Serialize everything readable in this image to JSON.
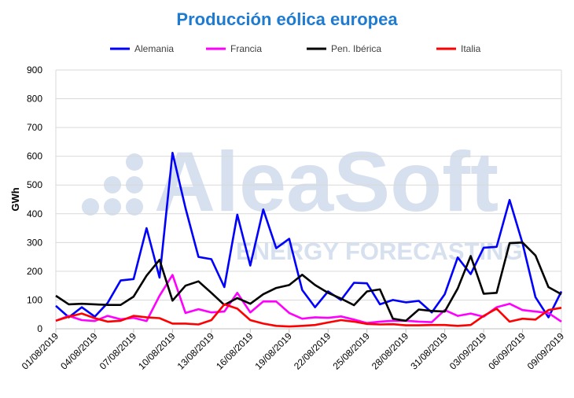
{
  "chart_data": {
    "type": "line",
    "title": "Producción eólica europea",
    "xlabel": "",
    "ylabel": "GWh",
    "ylim": [
      0,
      900
    ],
    "yticks": [
      0,
      100,
      200,
      300,
      400,
      500,
      600,
      700,
      800,
      900
    ],
    "grid": true,
    "legend": "top",
    "watermark": "AleaSoft ENERGY FORECASTING",
    "x": [
      "01/08/2019",
      "02/08/2019",
      "03/08/2019",
      "04/08/2019",
      "05/08/2019",
      "06/08/2019",
      "07/08/2019",
      "08/08/2019",
      "09/08/2019",
      "10/08/2019",
      "11/08/2019",
      "12/08/2019",
      "13/08/2019",
      "14/08/2019",
      "15/08/2019",
      "16/08/2019",
      "17/08/2019",
      "18/08/2019",
      "19/08/2019",
      "20/08/2019",
      "21/08/2019",
      "22/08/2019",
      "23/08/2019",
      "24/08/2019",
      "25/08/2019",
      "26/08/2019",
      "27/08/2019",
      "28/08/2019",
      "29/08/2019",
      "30/08/2019",
      "31/08/2019",
      "01/09/2019",
      "02/09/2019",
      "03/09/2019",
      "04/09/2019",
      "05/09/2019",
      "06/09/2019",
      "07/09/2019",
      "08/09/2019",
      "09/09/2019"
    ],
    "xticklabels": [
      "01/08/2019",
      "04/08/2019",
      "07/08/2019",
      "10/08/2019",
      "13/08/2019",
      "16/08/2019",
      "19/08/2019",
      "22/08/2019",
      "25/08/2019",
      "28/08/2019",
      "31/08/2019",
      "03/09/2019",
      "06/09/2019",
      "09/09/2019"
    ],
    "series": [
      {
        "name": "Alemania",
        "color": "#0000FF",
        "values": [
          80,
          40,
          75,
          42,
          90,
          168,
          173,
          350,
          178,
          612,
          420,
          250,
          242,
          145,
          397,
          220,
          415,
          280,
          313,
          135,
          75,
          130,
          100,
          160,
          158,
          85,
          100,
          92,
          97,
          57,
          120,
          248,
          190,
          282,
          285,
          448,
          298,
          110,
          40,
          130
        ]
      },
      {
        "name": "Francia",
        "color": "#FF00FF",
        "values": [
          28,
          45,
          30,
          27,
          45,
          33,
          38,
          27,
          115,
          187,
          55,
          68,
          57,
          60,
          125,
          57,
          95,
          95,
          55,
          35,
          40,
          38,
          43,
          32,
          20,
          25,
          28,
          28,
          25,
          23,
          65,
          45,
          53,
          42,
          75,
          87,
          65,
          60,
          55,
          25
        ]
      },
      {
        "name": "Pen. Ibérica",
        "color": "#000000",
        "values": [
          115,
          85,
          87,
          85,
          83,
          83,
          112,
          185,
          240,
          98,
          150,
          165,
          125,
          83,
          107,
          87,
          120,
          142,
          152,
          188,
          152,
          125,
          105,
          82,
          130,
          137,
          35,
          28,
          67,
          62,
          60,
          140,
          253,
          122,
          125,
          298,
          300,
          255,
          145,
          120
        ]
      },
      {
        "name": "Italia",
        "color": "#FF0000",
        "values": [
          28,
          42,
          53,
          37,
          25,
          28,
          45,
          40,
          37,
          18,
          18,
          15,
          30,
          85,
          70,
          30,
          18,
          10,
          8,
          10,
          13,
          22,
          30,
          25,
          17,
          15,
          16,
          12,
          12,
          13,
          13,
          10,
          13,
          45,
          70,
          25,
          35,
          32,
          65,
          73
        ]
      }
    ]
  }
}
